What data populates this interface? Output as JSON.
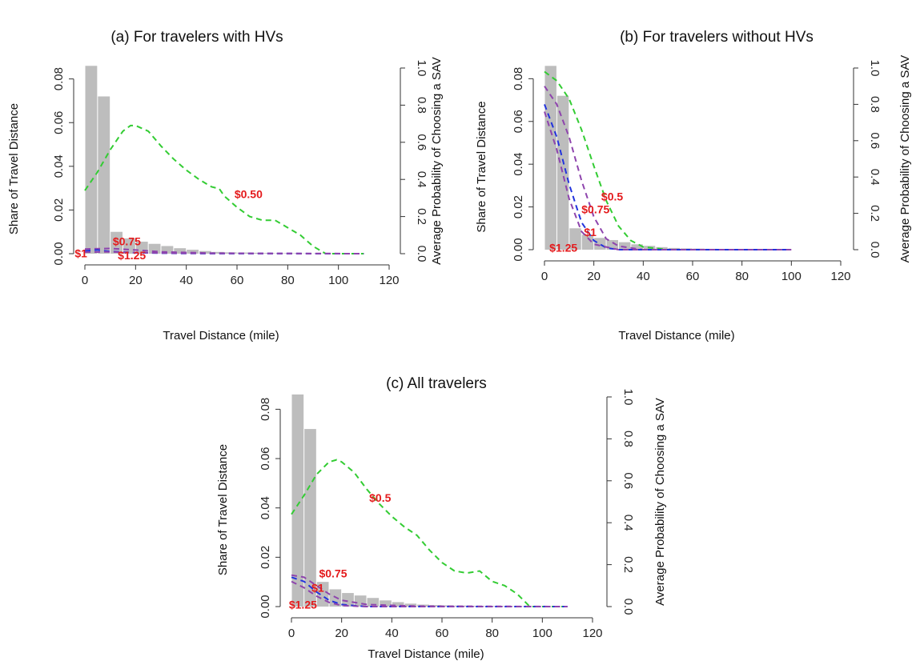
{
  "colors": {
    "bar": "#bdbdbd",
    "price_0_5": "#33cc33",
    "price_0_75": "#8e44ad",
    "price_1": "#2233dd",
    "price_1_25": "#8e44ad",
    "label": "#e41a1c",
    "axis": "#333333"
  },
  "chart_data": [
    {
      "type": "bar",
      "title": "(a) For travelers with HVs",
      "xlabel": "Travel Distance (mile)",
      "ylabel": "Share of Travel Distance",
      "y2label": "Average Probability of Choosing a SAV",
      "xlim": [
        0,
        120
      ],
      "ylim": [
        0,
        0.085
      ],
      "y2lim": [
        0,
        1.0
      ],
      "xticks": [
        "0",
        "20",
        "40",
        "60",
        "80",
        "100",
        "120"
      ],
      "yticks": [
        "0.00",
        "0.02",
        "0.04",
        "0.06",
        "0.08"
      ],
      "y2ticks": [
        "0.0",
        "0.2",
        "0.4",
        "0.6",
        "0.8",
        "1.0"
      ],
      "bar_width": 5,
      "bar_left_edges": [
        0,
        5,
        10,
        15,
        20,
        25,
        30,
        35,
        40,
        45,
        50,
        55,
        60,
        65,
        70,
        75,
        80,
        85,
        90,
        95,
        100,
        105
      ],
      "bar_values": [
        0.086,
        0.072,
        0.01,
        0.007,
        0.0055,
        0.0045,
        0.0035,
        0.0025,
        0.0018,
        0.0012,
        0.0008,
        0.0006,
        0.0005,
        0.0004,
        0.0003,
        0.0002,
        0.0002,
        0.0001,
        0.0001,
        0.0001,
        0.0,
        0.0
      ],
      "series": [
        {
          "name": "$0.50",
          "x": [
            0,
            5,
            10,
            15,
            18,
            20,
            25,
            30,
            35,
            40,
            45,
            50,
            53,
            55,
            60,
            65,
            70,
            75,
            80,
            85,
            90,
            95,
            110
          ],
          "y": [
            0.34,
            0.44,
            0.56,
            0.66,
            0.69,
            0.69,
            0.66,
            0.58,
            0.51,
            0.45,
            0.4,
            0.36,
            0.35,
            0.31,
            0.25,
            0.2,
            0.18,
            0.18,
            0.14,
            0.1,
            0.04,
            0.0,
            0.0
          ],
          "color": "#33cc33",
          "label": "$0.50",
          "label_at": [
            59,
            0.3
          ]
        },
        {
          "name": "$0.75",
          "x": [
            0,
            10,
            20,
            30,
            50,
            80,
            110
          ],
          "y": [
            0.025,
            0.028,
            0.02,
            0.01,
            0.003,
            0.001,
            0.0
          ],
          "color": "#8e44ad",
          "label": "$0.75",
          "label_at": [
            11,
            0.045
          ]
        },
        {
          "name": "$1",
          "x": [
            0,
            5,
            10,
            20,
            40,
            110
          ],
          "y": [
            0.015,
            0.02,
            0.012,
            0.005,
            0.001,
            0.0
          ],
          "color": "#2233dd",
          "label": "$1",
          "label_at": [
            -4,
            -0.02
          ]
        },
        {
          "name": "$1.25",
          "x": [
            0,
            10,
            20,
            40,
            110
          ],
          "y": [
            0.008,
            0.01,
            0.006,
            0.002,
            0.0
          ],
          "color": "#8e44ad",
          "label": "$1.25",
          "label_at": [
            13,
            -0.03
          ]
        }
      ]
    },
    {
      "type": "bar",
      "title": "(b) For travelers without HVs",
      "xlabel": "Travel Distance (mile)",
      "ylabel": "Share of Travel Distance",
      "y2label": "Average Probability of Choosing a SAV",
      "xlim": [
        0,
        120
      ],
      "ylim": [
        0,
        0.085
      ],
      "y2lim": [
        0,
        1.0
      ],
      "xticks": [
        "0",
        "20",
        "40",
        "60",
        "80",
        "100",
        "120"
      ],
      "yticks": [
        "0.00",
        "0.02",
        "0.04",
        "0.06",
        "0.08"
      ],
      "y2ticks": [
        "0.0",
        "0.2",
        "0.4",
        "0.6",
        "0.8",
        "1.0"
      ],
      "bar_width": 5,
      "bar_left_edges": [
        0,
        5,
        10,
        15,
        20,
        25,
        30,
        35,
        40,
        45,
        50,
        55,
        60,
        65,
        70,
        75,
        80,
        85,
        90,
        95
      ],
      "bar_values": [
        0.086,
        0.072,
        0.01,
        0.007,
        0.0055,
        0.0045,
        0.0035,
        0.0025,
        0.0018,
        0.0012,
        0.0008,
        0.0006,
        0.0005,
        0.0004,
        0.0003,
        0.0002,
        0.0002,
        0.0001,
        0.0001,
        0.0001
      ],
      "series": [
        {
          "name": "$0.5",
          "x": [
            0,
            5,
            10,
            15,
            20,
            25,
            30,
            35,
            40,
            50,
            100
          ],
          "y": [
            0.98,
            0.93,
            0.83,
            0.66,
            0.46,
            0.27,
            0.13,
            0.05,
            0.015,
            0.0,
            0.0
          ],
          "color": "#33cc33",
          "label": "$0.5",
          "label_at": [
            23,
            0.27
          ]
        },
        {
          "name": "$0.75",
          "x": [
            0,
            5,
            10,
            15,
            20,
            25,
            30,
            40,
            100
          ],
          "y": [
            0.9,
            0.8,
            0.62,
            0.38,
            0.18,
            0.06,
            0.02,
            0.0,
            0.0
          ],
          "color": "#8e44ad",
          "label": "$0.75",
          "label_at": [
            15,
            0.2
          ]
        },
        {
          "name": "$1",
          "x": [
            0,
            5,
            10,
            15,
            20,
            25,
            30,
            100
          ],
          "y": [
            0.8,
            0.62,
            0.36,
            0.15,
            0.05,
            0.01,
            0.0,
            0.0
          ],
          "color": "#2233dd",
          "label": "$1",
          "label_at": [
            16,
            0.075
          ]
        },
        {
          "name": "$1.25",
          "x": [
            0,
            5,
            10,
            15,
            20,
            30,
            100
          ],
          "y": [
            0.76,
            0.55,
            0.28,
            0.1,
            0.03,
            0.0,
            0.0
          ],
          "color": "#8e44ad",
          "label": "$1.25",
          "label_at": [
            2,
            -0.01
          ]
        }
      ]
    },
    {
      "type": "bar",
      "title": "(c) All travelers",
      "xlabel": "Travel Distance (mile)",
      "ylabel": "Share of Travel Distance",
      "y2label": "Average Probability of Choosing a SAV",
      "xlim": [
        0,
        120
      ],
      "ylim": [
        0,
        0.085
      ],
      "y2lim": [
        0,
        1.0
      ],
      "xticks": [
        "0",
        "20",
        "40",
        "60",
        "80",
        "100",
        "120"
      ],
      "yticks": [
        "0.00",
        "0.02",
        "0.04",
        "0.06",
        "0.08"
      ],
      "y2ticks": [
        "0.0",
        "0.2",
        "0.4",
        "0.6",
        "0.8",
        "1.0"
      ],
      "bar_width": 5,
      "bar_left_edges": [
        0,
        5,
        10,
        15,
        20,
        25,
        30,
        35,
        40,
        45,
        50,
        55,
        60,
        65,
        70,
        75,
        80,
        85,
        90,
        95
      ],
      "bar_values": [
        0.086,
        0.072,
        0.01,
        0.007,
        0.0055,
        0.0045,
        0.0035,
        0.0025,
        0.0018,
        0.0012,
        0.0008,
        0.0006,
        0.0005,
        0.0004,
        0.0003,
        0.0002,
        0.0002,
        0.0001,
        0.0001,
        0.0001
      ],
      "series": [
        {
          "name": "$0.5",
          "x": [
            0,
            5,
            10,
            15,
            18,
            20,
            25,
            30,
            35,
            40,
            45,
            50,
            55,
            60,
            65,
            70,
            75,
            80,
            85,
            90,
            95,
            110
          ],
          "y": [
            0.44,
            0.53,
            0.63,
            0.69,
            0.7,
            0.69,
            0.64,
            0.56,
            0.49,
            0.43,
            0.38,
            0.34,
            0.27,
            0.21,
            0.17,
            0.16,
            0.17,
            0.12,
            0.1,
            0.06,
            0.0,
            0.0
          ],
          "color": "#33cc33",
          "label": "$0.5",
          "label_at": [
            31,
            0.5
          ]
        },
        {
          "name": "$0.75",
          "x": [
            0,
            5,
            10,
            15,
            20,
            30,
            50,
            110
          ],
          "y": [
            0.15,
            0.14,
            0.1,
            0.06,
            0.03,
            0.01,
            0.002,
            0.0
          ],
          "color": "#8e44ad",
          "label": "$0.75",
          "label_at": [
            11,
            0.14
          ]
        },
        {
          "name": "$1",
          "x": [
            0,
            5,
            10,
            15,
            20,
            30,
            110
          ],
          "y": [
            0.14,
            0.12,
            0.07,
            0.03,
            0.01,
            0.0,
            0.0
          ],
          "color": "#2233dd",
          "label": "$1",
          "label_at": [
            8,
            0.07
          ]
        },
        {
          "name": "$1.25",
          "x": [
            0,
            5,
            10,
            15,
            20,
            30,
            110
          ],
          "y": [
            0.12,
            0.09,
            0.05,
            0.02,
            0.005,
            0.0,
            0.0
          ],
          "color": "#8e44ad",
          "label": "$1.25",
          "label_at": [
            -1,
            -0.01
          ]
        }
      ]
    }
  ]
}
